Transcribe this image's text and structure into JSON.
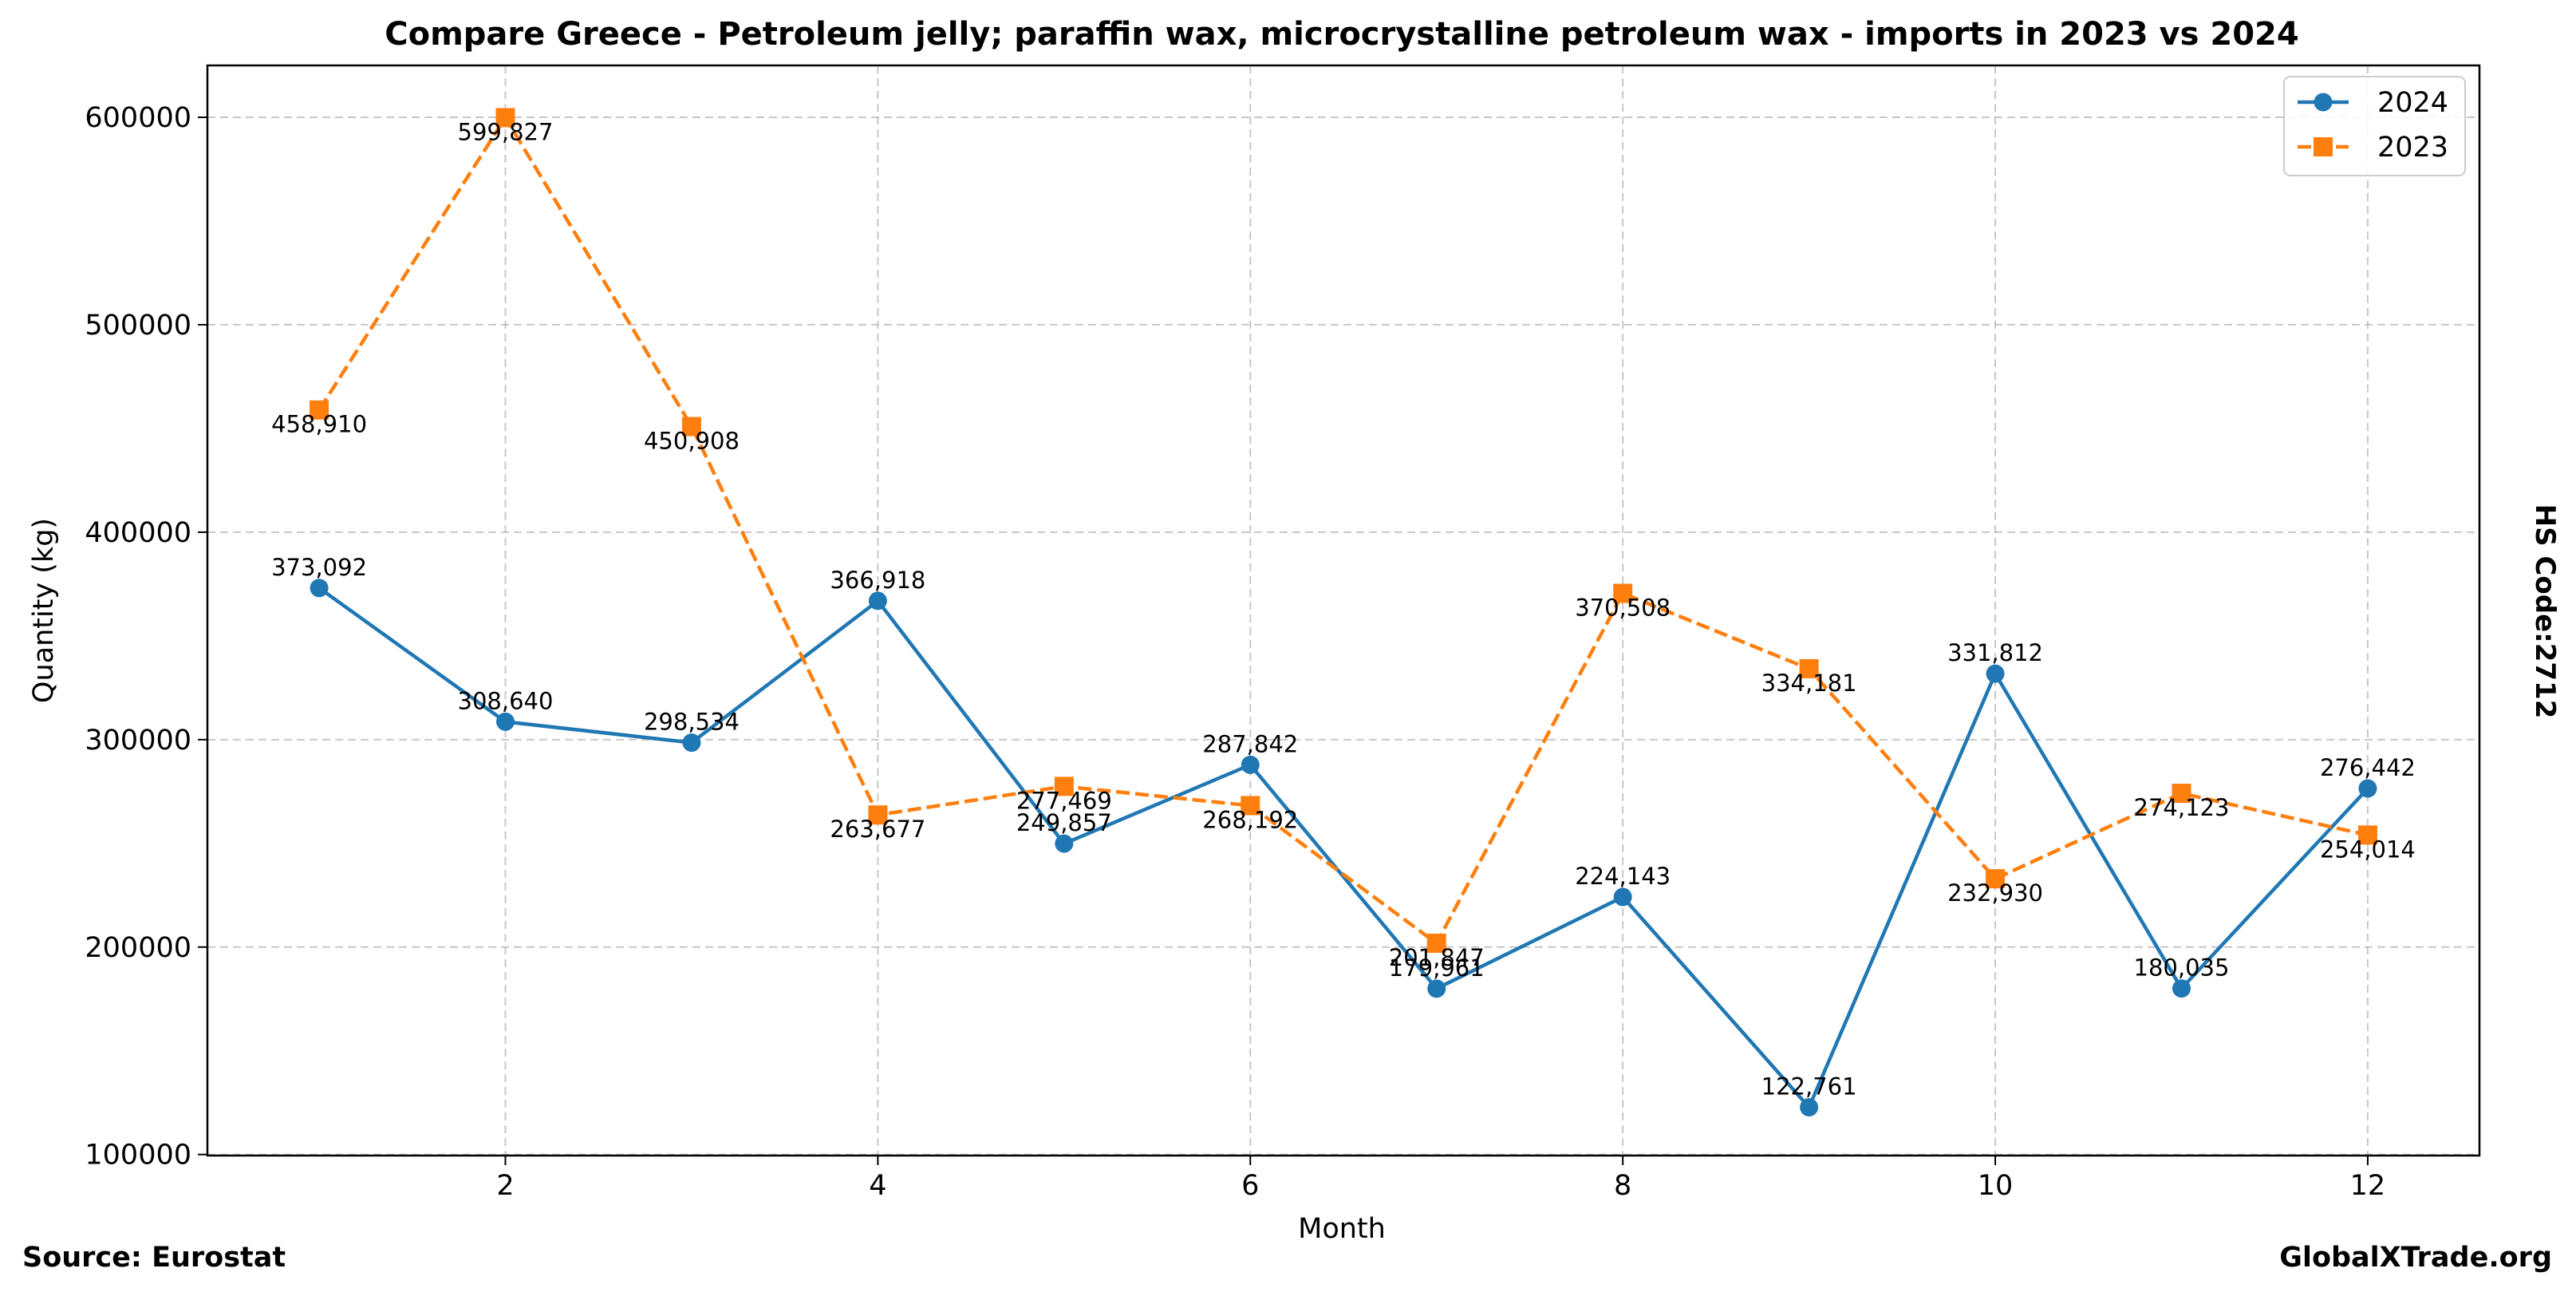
{
  "chart_data": {
    "type": "line",
    "title": "Compare Greece - Petroleum jelly; paraffin wax, microcrystalline petroleum wax - imports in 2023 vs 2024",
    "xlabel": "Month",
    "ylabel": "Quantity (kg)",
    "xlim": [
      0.4,
      12.6
    ],
    "ylim": [
      99500,
      625000
    ],
    "x_ticks": [
      2,
      4,
      6,
      8,
      10,
      12
    ],
    "x_tick_labels": [
      "2",
      "4",
      "6",
      "8",
      "10",
      "12"
    ],
    "y_ticks": [
      100000,
      200000,
      300000,
      400000,
      500000,
      600000
    ],
    "y_tick_labels": [
      "100000",
      "200000",
      "300000",
      "400000",
      "500000",
      "600000"
    ],
    "grid": true,
    "legend_position": "top-right",
    "x": [
      1,
      2,
      3,
      4,
      5,
      6,
      7,
      8,
      9,
      10,
      11,
      12
    ],
    "series": [
      {
        "name": "2024",
        "color": "#1f77b4",
        "marker": "circle",
        "linestyle": "solid",
        "values": [
          373092,
          308640,
          298534,
          366918,
          249857,
          287842,
          179961,
          224143,
          122761,
          331812,
          180035,
          276442
        ],
        "labels": [
          "373,092",
          "308,640",
          "298,534",
          "366,918",
          "249,857",
          "287,842",
          "179,961",
          "224,143",
          "122,761",
          "331,812",
          "180,035",
          "276,442"
        ]
      },
      {
        "name": "2023",
        "color": "#ff7f0e",
        "marker": "square",
        "linestyle": "dashed",
        "values": [
          458910,
          599827,
          450908,
          263677,
          277469,
          268192,
          201847,
          370508,
          334181,
          232930,
          274123,
          254014
        ],
        "labels": [
          "458,910",
          "599,827",
          "450,908",
          "263,677",
          "277,469",
          "268,192",
          "201,847",
          "370,508",
          "334,181",
          "232,930",
          "274,123",
          "254,014"
        ]
      }
    ]
  },
  "footer": {
    "source": "Source: Eurostat",
    "site": "GlobalXTrade.org",
    "hs_code": "HS Code:2712"
  }
}
